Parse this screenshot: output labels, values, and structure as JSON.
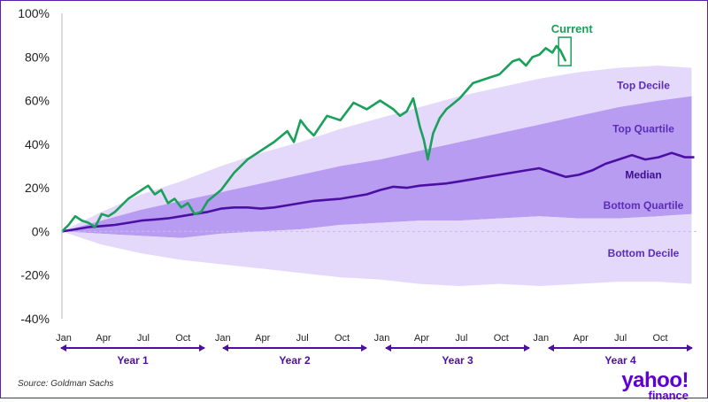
{
  "chart_data": {
    "type": "line",
    "ylim": [
      -40,
      100
    ],
    "y_ticks": [
      "-40%",
      "-20%",
      "0%",
      "20%",
      "40%",
      "60%",
      "80%",
      "100%"
    ],
    "y_tick_values": [
      -40,
      -20,
      0,
      20,
      40,
      60,
      80,
      100
    ],
    "months_total": 48,
    "x_tick_labels": [
      "Jan",
      "Apr",
      "Jul",
      "Oct",
      "Jan",
      "Apr",
      "Jul",
      "Oct",
      "Jan",
      "Apr",
      "Jul",
      "Oct",
      "Jan",
      "Apr",
      "Jul",
      "Oct"
    ],
    "x_tick_months": [
      0,
      3,
      6,
      9,
      12,
      15,
      18,
      21,
      24,
      27,
      30,
      33,
      36,
      39,
      42,
      45
    ],
    "year_labels": [
      "Year 1",
      "Year 2",
      "Year 3",
      "Year 4"
    ],
    "bands": [
      {
        "name": "Top Decile",
        "month": [
          0,
          3,
          6,
          9,
          12,
          15,
          18,
          21,
          24,
          27,
          30,
          33,
          36,
          39,
          42,
          45,
          47.5
        ],
        "values": [
          0,
          9,
          17,
          23,
          30,
          36,
          41,
          47,
          52,
          57,
          62,
          66,
          70,
          73,
          75,
          76,
          75
        ]
      },
      {
        "name": "Top Quartile",
        "month": [
          0,
          3,
          6,
          9,
          12,
          15,
          18,
          21,
          24,
          27,
          30,
          33,
          36,
          39,
          42,
          45,
          47.5
        ],
        "values": [
          0,
          5,
          10,
          14,
          18,
          22,
          26,
          30,
          33,
          37,
          41,
          45,
          49,
          53,
          57,
          60,
          62
        ]
      },
      {
        "name": "Bottom Quartile",
        "month": [
          0,
          3,
          6,
          9,
          12,
          15,
          18,
          21,
          24,
          27,
          30,
          33,
          36,
          39,
          42,
          45,
          47.5
        ],
        "values": [
          0,
          -1,
          -2,
          -3,
          -1,
          0,
          1,
          3,
          4,
          5,
          5,
          6,
          7,
          6,
          6,
          7,
          8
        ]
      },
      {
        "name": "Bottom Decile",
        "month": [
          0,
          3,
          6,
          9,
          12,
          15,
          18,
          21,
          24,
          27,
          30,
          33,
          36,
          39,
          42,
          45,
          47.5
        ],
        "values": [
          0,
          -6,
          -10,
          -13,
          -15,
          -17,
          -19,
          -21,
          -22,
          -24,
          -25,
          -24,
          -25,
          -24,
          -23,
          -23,
          -24
        ]
      }
    ],
    "series": [
      {
        "name": "Median",
        "color": "#4b0fa3",
        "month": [
          0,
          1,
          2,
          3,
          4,
          5,
          6,
          7,
          8,
          9,
          10,
          11,
          12,
          13,
          14,
          15,
          16,
          17,
          18,
          19,
          20,
          21,
          22,
          23,
          24,
          25,
          26,
          27,
          28,
          29,
          30,
          31,
          32,
          33,
          34,
          35,
          36,
          37,
          38,
          39,
          40,
          41,
          42,
          43,
          44,
          45,
          46,
          47,
          47.7
        ],
        "values": [
          0,
          1,
          2,
          2.5,
          3,
          4,
          5,
          5.5,
          6,
          7,
          8,
          9,
          10.5,
          11,
          11,
          10.5,
          11,
          12,
          13,
          14,
          14.5,
          15,
          16,
          17,
          19,
          20.5,
          20,
          21,
          21.5,
          22,
          23,
          24,
          25,
          26,
          27,
          28,
          29,
          27,
          25,
          26,
          28,
          31,
          33,
          35,
          33,
          34,
          36,
          34,
          34
        ]
      },
      {
        "name": "Current",
        "color": "#19a05a",
        "month": [
          0,
          0.5,
          1,
          1.5,
          2,
          2.5,
          3,
          3.5,
          4,
          5,
          6,
          6.5,
          7,
          7.5,
          8,
          8.5,
          9,
          9.5,
          10,
          10.5,
          11,
          12,
          12.5,
          13,
          14,
          15,
          16,
          17,
          17.5,
          18,
          18.5,
          19,
          20,
          21,
          22,
          23,
          24,
          25,
          25.5,
          26,
          26.5,
          27,
          27.3,
          27.6,
          28,
          28.5,
          29,
          30,
          31,
          32,
          33,
          34,
          34.5,
          35,
          35.5,
          36,
          36.5,
          37,
          37.3,
          37.6,
          38
        ],
        "values": [
          0,
          3,
          7,
          5,
          4,
          2,
          8,
          7,
          9,
          15,
          19,
          21,
          17,
          19,
          13,
          15,
          11,
          13,
          8,
          9,
          14,
          19,
          23,
          27,
          33,
          37,
          41,
          46,
          41,
          51,
          47,
          44,
          53,
          51,
          59,
          56,
          60,
          56,
          53,
          55,
          61,
          48,
          42,
          33,
          45,
          52,
          56,
          61,
          68,
          70,
          72,
          78,
          79,
          76,
          80,
          81,
          84,
          82,
          85,
          83,
          78
        ]
      }
    ],
    "band_labels": [
      "Top Decile",
      "Top Quartile",
      "Median",
      "Bottom Quartile",
      "Bottom Decile"
    ],
    "current_label": "Current"
  },
  "source": "Source: Goldman Sachs",
  "logo": {
    "line1": "yahoo!",
    "line2": "finance"
  }
}
